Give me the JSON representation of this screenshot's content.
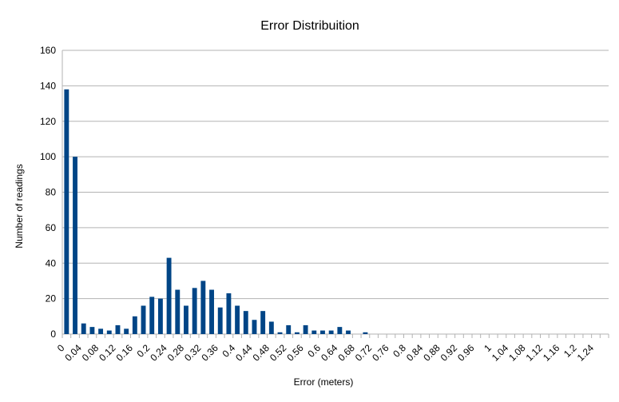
{
  "chart_data": {
    "type": "bar",
    "title": "Error Distribuition",
    "xlabel": "Error (meters)",
    "ylabel": "Number of  readings",
    "ylim": [
      0,
      160
    ],
    "y_ticks": [
      0,
      20,
      40,
      60,
      80,
      100,
      120,
      140,
      160
    ],
    "grid": true,
    "legend": "none",
    "colors": {
      "bar": "#004586",
      "grid": "#b3b3b3",
      "axis": "#b3b3b3"
    },
    "categories": [
      "0",
      "0.02",
      "0.04",
      "0.06",
      "0.08",
      "0.1",
      "0.12",
      "0.14",
      "0.16",
      "0.18",
      "0.2",
      "0.22",
      "0.24",
      "0.26",
      "0.28",
      "0.3",
      "0.32",
      "0.34",
      "0.36",
      "0.38",
      "0.4",
      "0.42",
      "0.44",
      "0.46",
      "0.48",
      "0.5",
      "0.52",
      "0.54",
      "0.56",
      "0.58",
      "0.6",
      "0.62",
      "0.64",
      "0.66",
      "0.68",
      "0.7",
      "0.72",
      "0.74",
      "0.76",
      "0.78",
      "0.8",
      "0.82",
      "0.84",
      "0.86",
      "0.88",
      "0.9",
      "0.92",
      "0.94",
      "0.96",
      "0.98",
      "1",
      "1.02",
      "1.04",
      "1.06",
      "1.08",
      "1.1",
      "1.12",
      "1.14",
      "1.16",
      "1.18",
      "1.2",
      "1.22",
      "1.24",
      "1.26"
    ],
    "x_tick_labels": [
      "0",
      "0.04",
      "0.08",
      "0.12",
      "0.16",
      "0.2",
      "0.24",
      "0.28",
      "0.32",
      "0.36",
      "0.4",
      "0.44",
      "0.48",
      "0.52",
      "0.56",
      "0.6",
      "0.64",
      "0.68",
      "0.72",
      "0.76",
      "0.8",
      "0.84",
      "0.88",
      "0.92",
      "0.96",
      "1",
      "1.04",
      "1.08",
      "1.12",
      "1.16",
      "1.2",
      "1.24"
    ],
    "values": [
      138,
      100,
      6,
      4,
      3,
      2,
      5,
      3,
      10,
      16,
      21,
      20,
      43,
      25,
      16,
      26,
      30,
      25,
      15,
      23,
      16,
      13,
      8,
      13,
      7,
      1,
      5,
      1,
      5,
      2,
      2,
      2,
      4,
      2,
      0,
      1,
      0,
      0,
      0,
      0,
      0,
      0,
      0,
      0,
      0,
      0,
      0,
      0,
      0,
      0,
      0,
      0,
      0,
      0,
      0,
      0,
      0,
      0,
      0,
      0,
      0,
      0,
      0,
      0
    ]
  }
}
